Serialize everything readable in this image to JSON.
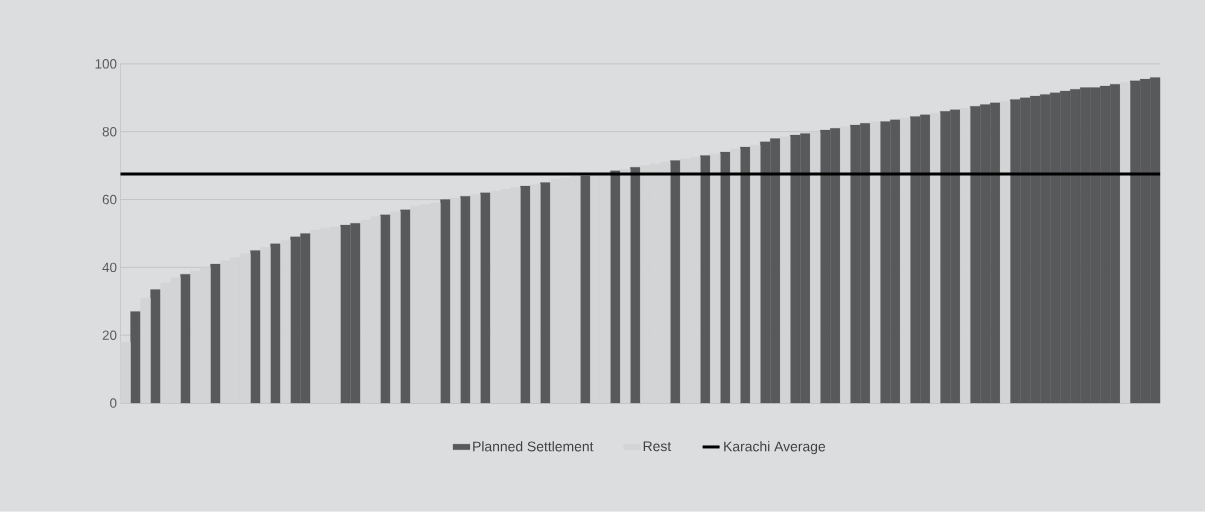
{
  "chart_data": {
    "type": "bar",
    "categories": [
      null,
      null,
      null,
      null,
      null,
      null,
      null,
      null,
      null,
      null,
      null,
      null,
      null,
      null,
      null,
      null,
      null,
      null,
      null,
      null,
      null,
      null,
      null,
      null,
      null,
      null,
      null,
      null,
      null,
      null,
      null,
      null,
      null,
      null,
      null,
      null,
      null,
      null,
      null,
      null,
      null,
      null,
      null,
      null,
      null,
      null,
      null,
      null,
      null,
      null,
      null,
      null,
      null,
      null,
      null,
      null,
      null,
      null,
      null,
      null,
      null,
      null,
      null,
      null,
      null,
      null,
      null,
      null,
      null,
      null,
      null,
      null,
      null,
      null,
      null,
      null,
      null,
      null,
      null,
      null,
      null,
      null,
      null,
      null,
      null,
      null,
      null,
      null,
      null,
      null,
      null,
      null,
      null,
      null,
      null,
      null,
      null,
      null,
      null,
      null,
      null,
      null,
      null,
      null
    ],
    "series": [
      {
        "name": "Planned Settlement",
        "color": "#58595b",
        "values": [
          null,
          27,
          null,
          33.5,
          null,
          null,
          38,
          null,
          null,
          41,
          null,
          null,
          null,
          45,
          null,
          47,
          null,
          49,
          50,
          null,
          null,
          null,
          52.5,
          53,
          null,
          null,
          55.5,
          null,
          57,
          null,
          null,
          null,
          60,
          null,
          61,
          null,
          62,
          null,
          null,
          null,
          64,
          null,
          65,
          null,
          null,
          null,
          67,
          null,
          null,
          68.5,
          null,
          69.5,
          null,
          null,
          null,
          71.5,
          null,
          null,
          73,
          null,
          74,
          null,
          75.5,
          null,
          77,
          78,
          null,
          79,
          79.5,
          null,
          80.5,
          81,
          null,
          82,
          82.5,
          null,
          83,
          83.5,
          null,
          84.5,
          85,
          null,
          86,
          86.5,
          null,
          87.5,
          88,
          88.5,
          null,
          89.5,
          90,
          90.5,
          91,
          91.5,
          92,
          92.5,
          93,
          93,
          93.5,
          94,
          null,
          95,
          95.5,
          96
        ]
      },
      {
        "name": "Rest",
        "color": "#d3d4d5",
        "values": [
          18,
          null,
          31,
          null,
          35.5,
          37,
          null,
          39,
          40,
          null,
          42,
          43,
          44,
          null,
          46,
          null,
          48,
          null,
          null,
          51,
          51.5,
          52,
          null,
          null,
          54,
          55,
          null,
          56.5,
          null,
          58,
          58.5,
          59,
          null,
          60.5,
          null,
          61.5,
          null,
          62.5,
          63,
          63.5,
          null,
          64.5,
          null,
          66,
          66.5,
          67,
          null,
          67.5,
          68,
          null,
          69,
          null,
          70,
          70.5,
          71,
          null,
          72,
          72.5,
          null,
          73.5,
          null,
          75,
          null,
          76,
          null,
          null,
          78.5,
          null,
          null,
          80,
          null,
          null,
          81.5,
          null,
          null,
          83,
          null,
          null,
          84,
          null,
          null,
          85.5,
          null,
          null,
          87,
          null,
          null,
          null,
          89,
          null,
          null,
          null,
          null,
          null,
          null,
          null,
          null,
          null,
          null,
          null,
          94.5,
          null,
          null,
          null
        ]
      }
    ],
    "ylim": [
      0,
      100
    ],
    "yticks": [
      0,
      20,
      40,
      60,
      80,
      100
    ],
    "grid": "y",
    "legend": "bottom",
    "ref_lines": [
      {
        "axis": "y",
        "value": 67.5,
        "label": "Karachi Average",
        "color": "#000000"
      }
    ]
  }
}
